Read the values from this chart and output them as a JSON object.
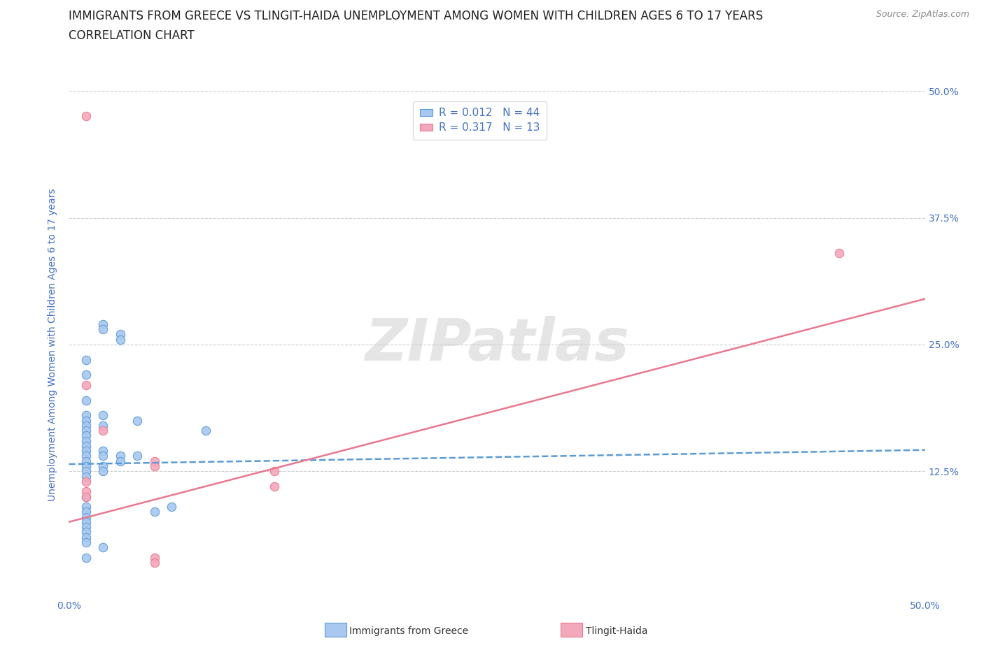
{
  "title": "IMMIGRANTS FROM GREECE VS TLINGIT-HAIDA UNEMPLOYMENT AMONG WOMEN WITH CHILDREN AGES 6 TO 17 YEARS",
  "subtitle": "CORRELATION CHART",
  "source": "Source: ZipAtlas.com",
  "ylabel": "Unemployment Among Women with Children Ages 6 to 17 years",
  "xlim": [
    0.0,
    0.5
  ],
  "ylim": [
    0.0,
    0.5
  ],
  "xticks": [
    0.0,
    0.125,
    0.25,
    0.375,
    0.5
  ],
  "yticks": [
    0.0,
    0.125,
    0.25,
    0.375,
    0.5
  ],
  "watermark": "ZIPatlas",
  "legend_blue_R": "0.012",
  "legend_blue_N": "44",
  "legend_pink_R": "0.317",
  "legend_pink_N": "13",
  "color_blue": "#A8C8F0",
  "color_pink": "#F4A8BC",
  "color_blue_dark": "#5B9BD5",
  "color_pink_dark": "#E87890",
  "color_text": "#4472C4",
  "blue_scatter_x": [
    0.02,
    0.02,
    0.03,
    0.03,
    0.01,
    0.01,
    0.01,
    0.01,
    0.01,
    0.01,
    0.01,
    0.01,
    0.01,
    0.01,
    0.01,
    0.01,
    0.01,
    0.01,
    0.01,
    0.01,
    0.02,
    0.02,
    0.02,
    0.02,
    0.03,
    0.03,
    0.04,
    0.04,
    0.05,
    0.06,
    0.01,
    0.01,
    0.01,
    0.01,
    0.01,
    0.01,
    0.01,
    0.01,
    0.01,
    0.01,
    0.02,
    0.02,
    0.02,
    0.08
  ],
  "blue_scatter_y": [
    0.27,
    0.265,
    0.26,
    0.255,
    0.235,
    0.22,
    0.195,
    0.18,
    0.175,
    0.17,
    0.165,
    0.16,
    0.155,
    0.15,
    0.145,
    0.14,
    0.135,
    0.13,
    0.125,
    0.12,
    0.145,
    0.14,
    0.13,
    0.125,
    0.14,
    0.135,
    0.14,
    0.175,
    0.085,
    0.09,
    0.1,
    0.09,
    0.085,
    0.08,
    0.075,
    0.07,
    0.065,
    0.06,
    0.055,
    0.04,
    0.18,
    0.17,
    0.05,
    0.165
  ],
  "pink_scatter_x": [
    0.01,
    0.01,
    0.01,
    0.01,
    0.01,
    0.05,
    0.05,
    0.05,
    0.05,
    0.12,
    0.12,
    0.45,
    0.02
  ],
  "pink_scatter_y": [
    0.475,
    0.21,
    0.115,
    0.105,
    0.1,
    0.04,
    0.035,
    0.135,
    0.13,
    0.125,
    0.11,
    0.34,
    0.165
  ],
  "blue_trend_x": [
    0.0,
    0.5
  ],
  "blue_trend_y": [
    0.132,
    0.146
  ],
  "pink_trend_x": [
    0.0,
    0.5
  ],
  "pink_trend_y": [
    0.075,
    0.295
  ],
  "grid_color": "#CCCCCC",
  "background_color": "#FFFFFF",
  "title_fontsize": 12,
  "subtitle_fontsize": 12,
  "label_fontsize": 10,
  "tick_fontsize": 10
}
